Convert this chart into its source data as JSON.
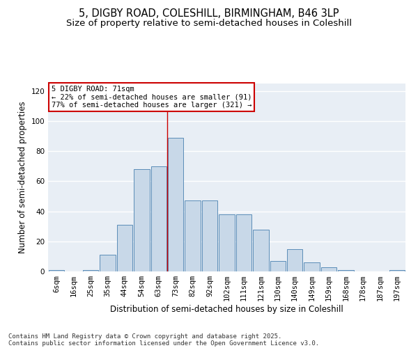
{
  "title_line1": "5, DIGBY ROAD, COLESHILL, BIRMINGHAM, B46 3LP",
  "title_line2": "Size of property relative to semi-detached houses in Coleshill",
  "xlabel": "Distribution of semi-detached houses by size in Coleshill",
  "ylabel": "Number of semi-detached properties",
  "categories": [
    "6sqm",
    "16sqm",
    "25sqm",
    "35sqm",
    "44sqm",
    "54sqm",
    "63sqm",
    "73sqm",
    "82sqm",
    "92sqm",
    "102sqm",
    "111sqm",
    "121sqm",
    "130sqm",
    "140sqm",
    "149sqm",
    "159sqm",
    "168sqm",
    "178sqm",
    "187sqm",
    "197sqm"
  ],
  "values": [
    1,
    0,
    1,
    11,
    31,
    68,
    70,
    89,
    47,
    47,
    38,
    38,
    28,
    7,
    15,
    6,
    3,
    1,
    0,
    0,
    1
  ],
  "bar_color": "#c8d8e8",
  "bar_edge_color": "#5b8db8",
  "annotation_text": "5 DIGBY ROAD: 71sqm\n← 22% of semi-detached houses are smaller (91)\n77% of semi-detached houses are larger (321) →",
  "vline_position": 6.5,
  "vline_color": "#cc0000",
  "annotation_box_edge_color": "#cc0000",
  "background_color": "#e8eef5",
  "grid_color": "#ffffff",
  "ylim": [
    0,
    125
  ],
  "yticks": [
    0,
    20,
    40,
    60,
    80,
    100,
    120
  ],
  "footer_line1": "Contains HM Land Registry data © Crown copyright and database right 2025.",
  "footer_line2": "Contains public sector information licensed under the Open Government Licence v3.0.",
  "title_fontsize": 10.5,
  "subtitle_fontsize": 9.5,
  "axis_label_fontsize": 8.5,
  "tick_fontsize": 7.5,
  "annotation_fontsize": 7.5,
  "footer_fontsize": 6.5
}
